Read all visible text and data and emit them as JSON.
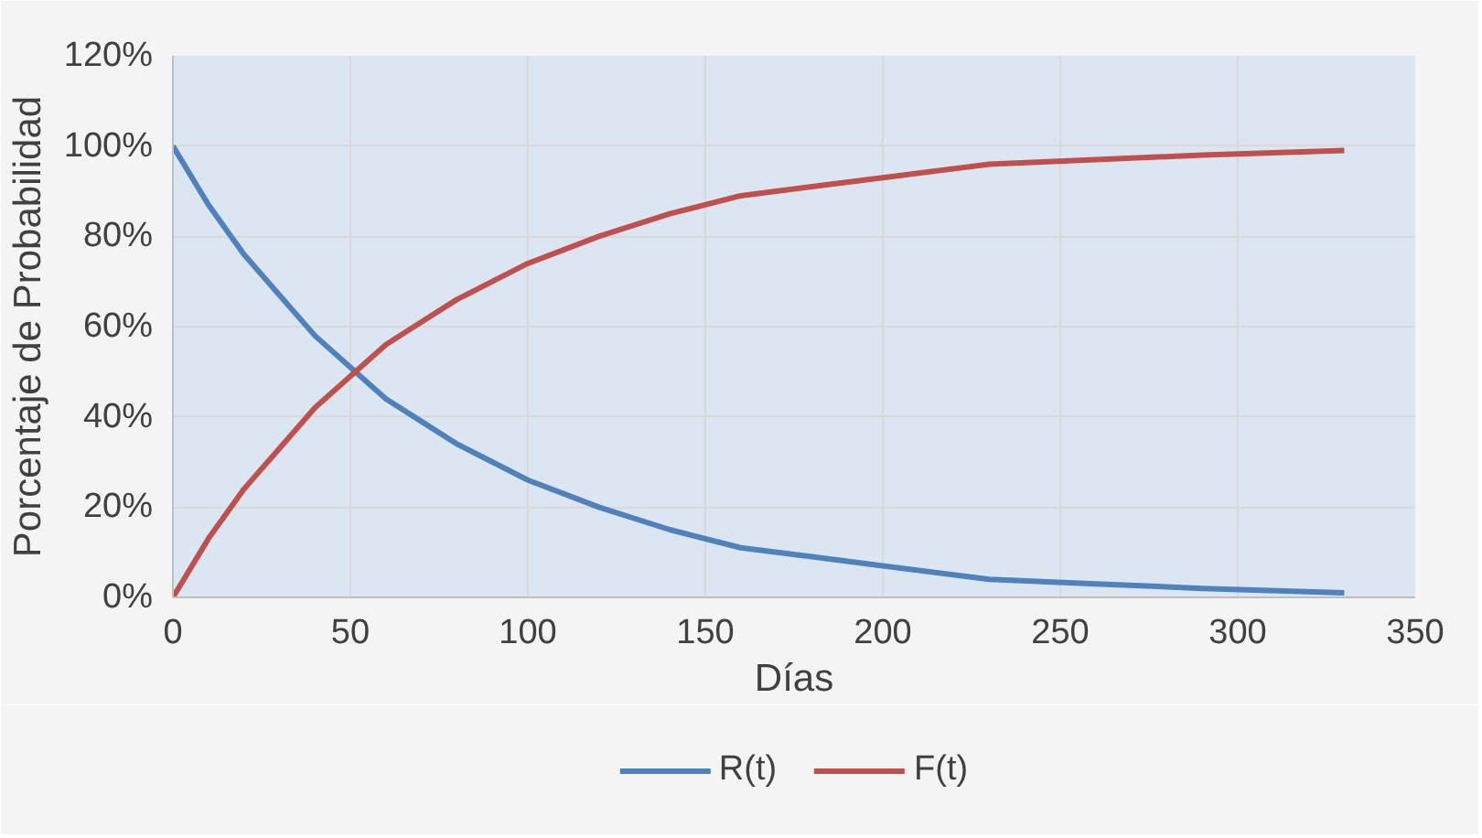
{
  "chart_data": {
    "type": "line",
    "xlabel": "Días",
    "ylabel": "Porcentaje de Probabilidad",
    "x": [
      0,
      10,
      20,
      30,
      40,
      50,
      60,
      70,
      80,
      90,
      100,
      120,
      140,
      160,
      180,
      200,
      230,
      260,
      290,
      330
    ],
    "series": [
      {
        "name": "R(t)",
        "color": "#4f81bd",
        "values": [
          100,
          87,
          76,
          67,
          58,
          51,
          44,
          39,
          34,
          30,
          26,
          20,
          15,
          11,
          9,
          7,
          4,
          3,
          2,
          1
        ]
      },
      {
        "name": "F(t)",
        "color": "#c0504d",
        "values": [
          0,
          13,
          24,
          33,
          42,
          49,
          56,
          61,
          66,
          70,
          74,
          80,
          85,
          89,
          91,
          93,
          96,
          97,
          98,
          99
        ]
      }
    ],
    "xlim": [
      0,
      350
    ],
    "xticks": [
      0,
      50,
      100,
      150,
      200,
      250,
      300,
      350
    ],
    "ylim": [
      0,
      120
    ],
    "yticks": [
      {
        "value": 0,
        "label": "0%"
      },
      {
        "value": 20,
        "label": "20%"
      },
      {
        "value": 40,
        "label": "40%"
      },
      {
        "value": 60,
        "label": "60%"
      },
      {
        "value": 80,
        "label": "80%"
      },
      {
        "value": 100,
        "label": "100%"
      },
      {
        "value": 120,
        "label": "120%"
      }
    ],
    "grid": true,
    "legend": "bottom",
    "marker": "none",
    "line_style": "solid"
  }
}
